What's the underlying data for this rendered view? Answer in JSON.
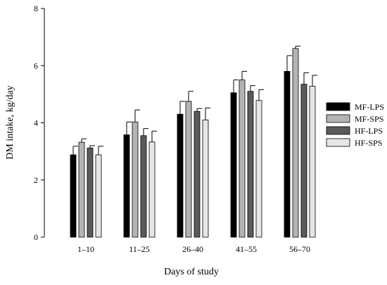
{
  "chart_data": {
    "type": "bar",
    "xlabel": "Days of study",
    "ylabel": "DM intake, kg/day",
    "ylim": [
      0,
      8
    ],
    "yticks": [
      0,
      2,
      4,
      6,
      8
    ],
    "grid": false,
    "legend_position": "right",
    "categories": [
      "1–10",
      "11–25",
      "26–40",
      "41–55",
      "56–70"
    ],
    "series": [
      {
        "name": "MF-LPS",
        "color": "#000000",
        "values": [
          2.88,
          3.58,
          4.3,
          5.05,
          5.8
        ],
        "errors": [
          0.3,
          0.45,
          0.45,
          0.45,
          0.55
        ]
      },
      {
        "name": "MF-SPS",
        "color": "#b4b4b4",
        "values": [
          3.32,
          4.03,
          4.75,
          5.5,
          6.6
        ],
        "errors": [
          0.12,
          0.42,
          0.35,
          0.3,
          0.08
        ]
      },
      {
        "name": "HF-LPS",
        "color": "#5a5a5a",
        "values": [
          3.12,
          3.55,
          4.4,
          5.1,
          5.35
        ],
        "errors": [
          0.08,
          0.25,
          0.1,
          0.2,
          0.4
        ]
      },
      {
        "name": "HF-SPS",
        "color": "#e6e6e6",
        "values": [
          2.88,
          3.33,
          4.1,
          4.78,
          5.28
        ],
        "errors": [
          0.3,
          0.38,
          0.42,
          0.38,
          0.38
        ]
      }
    ]
  }
}
